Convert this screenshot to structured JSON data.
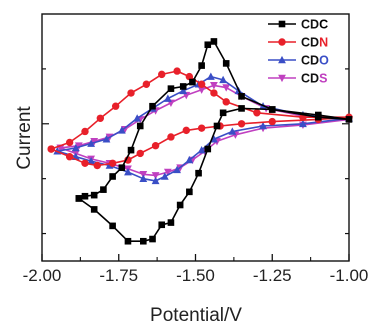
{
  "chart_data": {
    "type": "line",
    "xlabel": "Potential/V",
    "ylabel": "Current",
    "xlim": [
      -2.0,
      -1.0
    ],
    "x_ticks": [
      "-2.00",
      "-1.75",
      "-1.50",
      "-1.25",
      "-1.00"
    ],
    "y_ticks_labeled": false,
    "grid": false,
    "legend": "top-right",
    "series": [
      {
        "name": "CDC",
        "label_prefix": "CD",
        "label_suffix": "C",
        "label_suffix_color": "#000000",
        "color": "#000000",
        "marker": "square",
        "x": [
          -1.88,
          -1.86,
          -1.83,
          -1.8,
          -1.77,
          -1.74,
          -1.71,
          -1.68,
          -1.64,
          -1.58,
          -1.54,
          -1.51,
          -1.48,
          -1.46,
          -1.44,
          -1.4,
          -1.35,
          -1.25,
          -1.1,
          -1.0,
          -1.1,
          -1.25,
          -1.35,
          -1.41,
          -1.43,
          -1.46,
          -1.49,
          -1.52,
          -1.55,
          -1.58,
          -1.61,
          -1.64,
          -1.67,
          -1.72,
          -1.77,
          -1.83,
          -1.88
        ],
        "y": [
          -0.68,
          -0.66,
          -0.65,
          -0.6,
          -0.48,
          -0.4,
          -0.24,
          -0.02,
          0.16,
          0.32,
          0.34,
          0.38,
          0.53,
          0.72,
          0.75,
          0.55,
          0.25,
          0.13,
          0.06,
          0.04,
          0.08,
          0.13,
          0.14,
          0.1,
          -0.02,
          -0.23,
          -0.45,
          -0.62,
          -0.74,
          -0.9,
          -0.92,
          -1.05,
          -1.07,
          -1.07,
          -0.93,
          -0.78,
          -0.68
        ]
      },
      {
        "name": "CDN",
        "label_prefix": "CD",
        "label_suffix": "N",
        "label_suffix_color": "#e8202a",
        "color": "#e8202a",
        "marker": "circle",
        "x": [
          -1.97,
          -1.91,
          -1.86,
          -1.81,
          -1.76,
          -1.71,
          -1.66,
          -1.61,
          -1.56,
          -1.52,
          -1.48,
          -1.44,
          -1.4,
          -1.3,
          -1.15,
          -1.0,
          -1.1,
          -1.25,
          -1.35,
          -1.42,
          -1.48,
          -1.53,
          -1.58,
          -1.63,
          -1.68,
          -1.72,
          -1.77,
          -1.82,
          -1.86,
          -1.91,
          -1.97
        ],
        "y": [
          -0.23,
          -0.17,
          -0.07,
          0.05,
          0.16,
          0.28,
          0.36,
          0.45,
          0.48,
          0.43,
          0.36,
          0.28,
          0.2,
          0.1,
          0.06,
          0.06,
          0.04,
          0.02,
          0.0,
          -0.02,
          -0.04,
          -0.06,
          -0.12,
          -0.2,
          -0.27,
          -0.33,
          -0.36,
          -0.38,
          -0.36,
          -0.3,
          -0.23
        ]
      },
      {
        "name": "CDO",
        "label_prefix": "CD",
        "label_suffix": "O",
        "label_suffix_color": "#3a4ec6",
        "color": "#3a4ec6",
        "marker": "triangle",
        "x": [
          -1.95,
          -1.89,
          -1.84,
          -1.79,
          -1.74,
          -1.69,
          -1.64,
          -1.59,
          -1.54,
          -1.49,
          -1.45,
          -1.41,
          -1.36,
          -1.28,
          -1.15,
          -1.0,
          -1.15,
          -1.28,
          -1.38,
          -1.44,
          -1.48,
          -1.52,
          -1.56,
          -1.6,
          -1.63,
          -1.67,
          -1.72,
          -1.78,
          -1.84,
          -1.89,
          -1.95
        ],
        "y": [
          -0.25,
          -0.22,
          -0.18,
          -0.14,
          -0.06,
          0.05,
          0.14,
          0.23,
          0.3,
          0.36,
          0.43,
          0.4,
          0.3,
          0.16,
          0.08,
          0.05,
          0.0,
          -0.02,
          -0.07,
          -0.14,
          -0.24,
          -0.33,
          -0.42,
          -0.48,
          -0.52,
          -0.5,
          -0.44,
          -0.38,
          -0.34,
          -0.3,
          -0.25
        ]
      },
      {
        "name": "CDS",
        "label_prefix": "CD",
        "label_suffix": "S",
        "label_suffix_color": "#c040c0",
        "color": "#c040c0",
        "marker": "triangle-down",
        "x": [
          -1.94,
          -1.88,
          -1.83,
          -1.78,
          -1.73,
          -1.68,
          -1.63,
          -1.58,
          -1.53,
          -1.48,
          -1.44,
          -1.4,
          -1.35,
          -1.27,
          -1.15,
          -1.0,
          -1.15,
          -1.28,
          -1.37,
          -1.43,
          -1.47,
          -1.51,
          -1.55,
          -1.59,
          -1.63,
          -1.67,
          -1.72,
          -1.78,
          -1.84,
          -1.89,
          -1.94
        ],
        "y": [
          -0.22,
          -0.2,
          -0.16,
          -0.12,
          -0.05,
          0.04,
          0.12,
          0.19,
          0.26,
          0.31,
          0.35,
          0.33,
          0.25,
          0.14,
          0.07,
          0.04,
          -0.01,
          -0.04,
          -0.1,
          -0.16,
          -0.25,
          -0.33,
          -0.4,
          -0.44,
          -0.47,
          -0.46,
          -0.41,
          -0.36,
          -0.32,
          -0.27,
          -0.22
        ]
      }
    ]
  }
}
